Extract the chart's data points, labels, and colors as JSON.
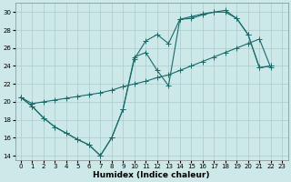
{
  "xlabel": "Humidex (Indice chaleur)",
  "bg_color": "#cce8e8",
  "grid_color": "#aacccc",
  "line_color": "#1a6b6b",
  "xlim": [
    -0.5,
    23.5
  ],
  "ylim": [
    13.5,
    31
  ],
  "xticks": [
    0,
    1,
    2,
    3,
    4,
    5,
    6,
    7,
    8,
    9,
    10,
    11,
    12,
    13,
    14,
    15,
    16,
    17,
    18,
    19,
    20,
    21,
    22,
    23
  ],
  "yticks": [
    14,
    16,
    18,
    20,
    22,
    24,
    26,
    28,
    30
  ],
  "line1_x": [
    0,
    1,
    2,
    3,
    4,
    5,
    6,
    7,
    8,
    9,
    10,
    11,
    12,
    13,
    14,
    15,
    16,
    17,
    18,
    19,
    20,
    21,
    22
  ],
  "line1_y": [
    20.5,
    19.5,
    18.2,
    17.2,
    16.5,
    15.8,
    15.2,
    14.0,
    16.0,
    19.2,
    25.0,
    25.5,
    23.5,
    21.8,
    29.2,
    29.3,
    29.7,
    30.0,
    30.0,
    29.3,
    27.5,
    23.8,
    24.0
  ],
  "line2_x": [
    0,
    1,
    2,
    3,
    4,
    5,
    6,
    7,
    8,
    9,
    10,
    11,
    12,
    13,
    14,
    15,
    16,
    17,
    18,
    19,
    20,
    21,
    22
  ],
  "line2_y": [
    20.5,
    19.8,
    20.0,
    20.2,
    20.4,
    20.6,
    20.8,
    21.0,
    21.3,
    21.7,
    22.0,
    22.3,
    22.7,
    23.0,
    23.5,
    24.0,
    24.5,
    25.0,
    25.5,
    26.0,
    26.5,
    27.0,
    23.8
  ],
  "line3_x": [
    0,
    1,
    2,
    3,
    4,
    5,
    6,
    7,
    8,
    9,
    10,
    11,
    12,
    13,
    14,
    15,
    16,
    17,
    18,
    19,
    20,
    21,
    22
  ],
  "line3_y": [
    20.5,
    19.5,
    18.2,
    17.2,
    16.5,
    15.8,
    15.2,
    14.0,
    16.0,
    19.2,
    24.8,
    26.8,
    27.5,
    26.5,
    29.2,
    29.5,
    29.8,
    30.0,
    30.2,
    29.3,
    27.5,
    23.8,
    24.0
  ]
}
